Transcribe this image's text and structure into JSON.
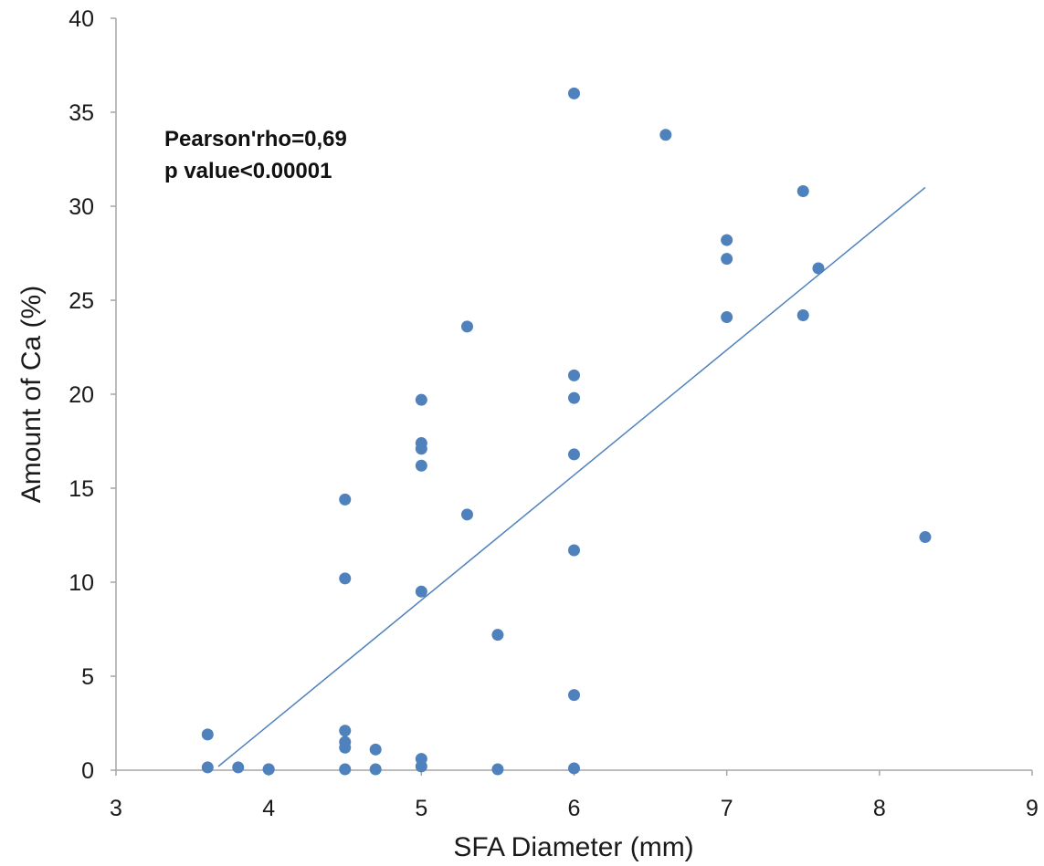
{
  "chart_data": {
    "type": "scatter",
    "title": "",
    "xlabel": "SFA Diameter (mm)",
    "ylabel": "Amount of Ca (%)",
    "xlim": [
      3,
      9
    ],
    "ylim": [
      0,
      40
    ],
    "xticks": [
      "3",
      "4",
      "5",
      "6",
      "7",
      "8",
      "9"
    ],
    "yticks": [
      "0",
      "5",
      "10",
      "15",
      "20",
      "25",
      "30",
      "35",
      "40"
    ],
    "grid": false,
    "legend": "none",
    "point_color": "#4f81bd",
    "trendline_color": "#4f81bd",
    "annotations": [
      "Pearson'rho=0,69",
      "p value<0.00001"
    ],
    "trendline": {
      "x": [
        3.67,
        8.3
      ],
      "y": [
        0.2,
        31.0
      ]
    },
    "points": [
      {
        "x": 3.6,
        "y": 1.9
      },
      {
        "x": 3.6,
        "y": 0.15
      },
      {
        "x": 3.8,
        "y": 0.15
      },
      {
        "x": 4.0,
        "y": 0.05
      },
      {
        "x": 4.0,
        "y": 0.05
      },
      {
        "x": 4.5,
        "y": 14.4
      },
      {
        "x": 4.5,
        "y": 10.2
      },
      {
        "x": 4.5,
        "y": 2.1
      },
      {
        "x": 4.5,
        "y": 1.5
      },
      {
        "x": 4.5,
        "y": 1.2
      },
      {
        "x": 4.5,
        "y": 0.05
      },
      {
        "x": 4.7,
        "y": 1.1
      },
      {
        "x": 4.7,
        "y": 0.05
      },
      {
        "x": 5.0,
        "y": 19.7
      },
      {
        "x": 5.0,
        "y": 17.4
      },
      {
        "x": 5.0,
        "y": 17.1
      },
      {
        "x": 5.0,
        "y": 16.2
      },
      {
        "x": 5.0,
        "y": 9.5
      },
      {
        "x": 5.0,
        "y": 0.6
      },
      {
        "x": 5.0,
        "y": 0.2
      },
      {
        "x": 5.3,
        "y": 23.6
      },
      {
        "x": 5.3,
        "y": 13.6
      },
      {
        "x": 5.5,
        "y": 7.2
      },
      {
        "x": 5.5,
        "y": 0.05
      },
      {
        "x": 6.0,
        "y": 36.0
      },
      {
        "x": 6.0,
        "y": 21.0
      },
      {
        "x": 6.0,
        "y": 19.8
      },
      {
        "x": 6.0,
        "y": 16.8
      },
      {
        "x": 6.0,
        "y": 11.7
      },
      {
        "x": 6.0,
        "y": 4.0
      },
      {
        "x": 6.0,
        "y": 0.1
      },
      {
        "x": 6.6,
        "y": 33.8
      },
      {
        "x": 7.0,
        "y": 28.2
      },
      {
        "x": 7.0,
        "y": 27.2
      },
      {
        "x": 7.0,
        "y": 24.1
      },
      {
        "x": 7.5,
        "y": 30.8
      },
      {
        "x": 7.5,
        "y": 24.2
      },
      {
        "x": 7.6,
        "y": 26.7
      },
      {
        "x": 8.3,
        "y": 12.4
      }
    ]
  }
}
